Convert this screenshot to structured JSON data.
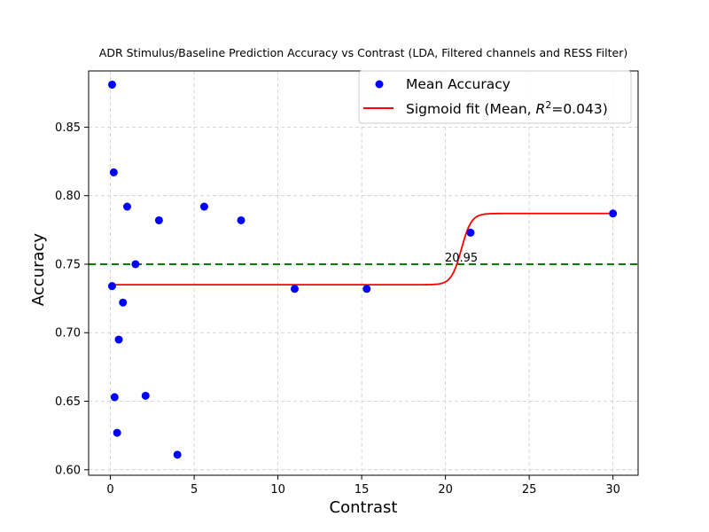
{
  "chart_data": {
    "type": "scatter",
    "title": "ADR Stimulus/Baseline Prediction Accuracy vs Contrast (LDA, Filtered channels and RESS Filter)",
    "xlabel": "Contrast",
    "ylabel": "Accuracy",
    "xlim": [
      -1.3,
      31.5
    ],
    "ylim": [
      0.596,
      0.891
    ],
    "xticks": [
      0,
      5,
      10,
      15,
      20,
      25,
      30
    ],
    "yticks": [
      0.6,
      0.65,
      0.7,
      0.75,
      0.8,
      0.85
    ],
    "grid": true,
    "legend_position": "top-right",
    "series": [
      {
        "name": "Mean Accuracy",
        "kind": "scatter",
        "color": "#0000ff",
        "points": [
          [
            0.1,
            0.881
          ],
          [
            0.1,
            0.734
          ],
          [
            0.2,
            0.817
          ],
          [
            0.25,
            0.653
          ],
          [
            0.4,
            0.627
          ],
          [
            0.5,
            0.695
          ],
          [
            0.75,
            0.722
          ],
          [
            1.0,
            0.792
          ],
          [
            1.5,
            0.75
          ],
          [
            2.1,
            0.654
          ],
          [
            2.9,
            0.782
          ],
          [
            4.0,
            0.611
          ],
          [
            5.6,
            0.792
          ],
          [
            7.8,
            0.782
          ],
          [
            11.0,
            0.732
          ],
          [
            15.3,
            0.732
          ],
          [
            21.5,
            0.773
          ],
          [
            30.0,
            0.787
          ]
        ]
      },
      {
        "name": "Sigmoid fit (Mean, R²=0.043)",
        "kind": "line",
        "color": "#ff0000",
        "sigmoid": {
          "bottom": 0.735,
          "top": 0.787,
          "x50": 20.95,
          "slope": 0.3,
          "xmin": 0.1,
          "xmax": 30.0
        }
      }
    ],
    "threshold_line": {
      "y": 0.75,
      "color": "#008000"
    },
    "annotations": [
      {
        "text": "20.95",
        "x": 20.95,
        "y": 0.752
      }
    ],
    "legend": {
      "scatter_label": "Mean Accuracy",
      "line_label_prefix": "Sigmoid fit (Mean, ",
      "line_label_r": "R",
      "line_label_sup": "2",
      "line_label_suffix": "=0.043)"
    }
  }
}
